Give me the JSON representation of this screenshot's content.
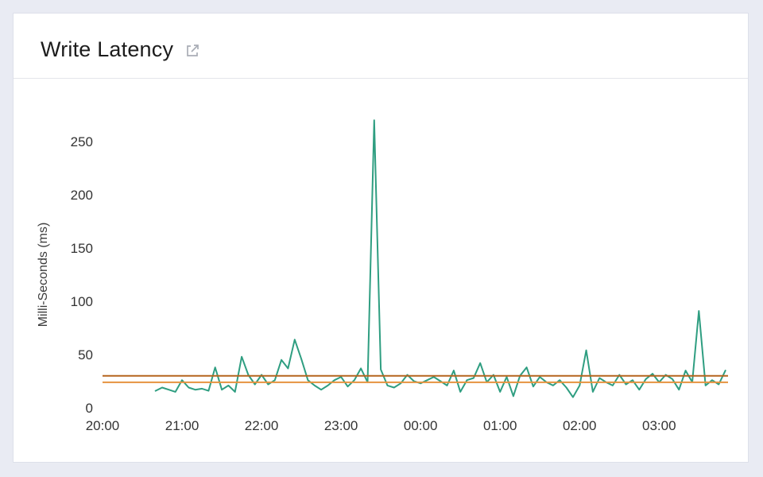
{
  "window": {
    "background_color": "#e9ebf3"
  },
  "header": {
    "title": "Write Latency",
    "external_link_icon": "open-in-new-window"
  },
  "chart_data": {
    "type": "line",
    "title": "Write Latency",
    "xlabel": "",
    "ylabel": "Milli-Seconds (ms)",
    "x_unit": "time of day (HH:MM)",
    "grid": false,
    "legend_position": "none",
    "ylim": [
      0,
      280
    ],
    "xlim_minutes_from_2000": [
      0,
      472
    ],
    "y_ticks": [
      0,
      50,
      100,
      150,
      200,
      250
    ],
    "x_ticks": [
      {
        "minutes": 0,
        "label": "20:00"
      },
      {
        "minutes": 60,
        "label": "21:00"
      },
      {
        "minutes": 120,
        "label": "22:00"
      },
      {
        "minutes": 180,
        "label": "23:00"
      },
      {
        "minutes": 240,
        "label": "00:00"
      },
      {
        "minutes": 300,
        "label": "01:00"
      },
      {
        "minutes": 360,
        "label": "02:00"
      },
      {
        "minutes": 420,
        "label": "03:00"
      }
    ],
    "threshold_lines": [
      {
        "value": 30,
        "color": "#b5641e"
      },
      {
        "value": 24,
        "color": "#e6933f"
      }
    ],
    "series": [
      {
        "name": "Write Latency (ms)",
        "color": "#2f9e81",
        "points": [
          [
            40,
            16
          ],
          [
            45,
            19
          ],
          [
            50,
            17
          ],
          [
            55,
            15
          ],
          [
            60,
            26
          ],
          [
            65,
            19
          ],
          [
            70,
            17
          ],
          [
            75,
            18
          ],
          [
            80,
            16
          ],
          [
            85,
            38
          ],
          [
            90,
            17
          ],
          [
            95,
            21
          ],
          [
            100,
            15
          ],
          [
            105,
            48
          ],
          [
            110,
            31
          ],
          [
            115,
            22
          ],
          [
            120,
            31
          ],
          [
            125,
            22
          ],
          [
            130,
            26
          ],
          [
            135,
            45
          ],
          [
            140,
            37
          ],
          [
            145,
            64
          ],
          [
            150,
            46
          ],
          [
            155,
            26
          ],
          [
            160,
            21
          ],
          [
            165,
            17
          ],
          [
            170,
            21
          ],
          [
            175,
            26
          ],
          [
            180,
            29
          ],
          [
            185,
            20
          ],
          [
            190,
            26
          ],
          [
            195,
            37
          ],
          [
            200,
            24
          ],
          [
            205,
            270
          ],
          [
            210,
            36
          ],
          [
            215,
            21
          ],
          [
            220,
            19
          ],
          [
            225,
            23
          ],
          [
            230,
            31
          ],
          [
            235,
            25
          ],
          [
            240,
            23
          ],
          [
            245,
            26
          ],
          [
            250,
            29
          ],
          [
            255,
            25
          ],
          [
            260,
            21
          ],
          [
            265,
            35
          ],
          [
            270,
            15
          ],
          [
            275,
            26
          ],
          [
            280,
            28
          ],
          [
            285,
            42
          ],
          [
            290,
            24
          ],
          [
            295,
            31
          ],
          [
            300,
            15
          ],
          [
            305,
            29
          ],
          [
            310,
            11
          ],
          [
            315,
            30
          ],
          [
            320,
            38
          ],
          [
            325,
            20
          ],
          [
            330,
            29
          ],
          [
            335,
            24
          ],
          [
            340,
            21
          ],
          [
            345,
            26
          ],
          [
            350,
            19
          ],
          [
            355,
            10
          ],
          [
            360,
            21
          ],
          [
            365,
            54
          ],
          [
            370,
            15
          ],
          [
            375,
            28
          ],
          [
            380,
            24
          ],
          [
            385,
            21
          ],
          [
            390,
            31
          ],
          [
            395,
            22
          ],
          [
            400,
            26
          ],
          [
            405,
            17
          ],
          [
            410,
            27
          ],
          [
            415,
            32
          ],
          [
            420,
            24
          ],
          [
            425,
            31
          ],
          [
            430,
            27
          ],
          [
            435,
            17
          ],
          [
            440,
            35
          ],
          [
            445,
            24
          ],
          [
            450,
            91
          ],
          [
            455,
            21
          ],
          [
            460,
            26
          ],
          [
            465,
            22
          ],
          [
            470,
            35
          ]
        ]
      }
    ]
  }
}
